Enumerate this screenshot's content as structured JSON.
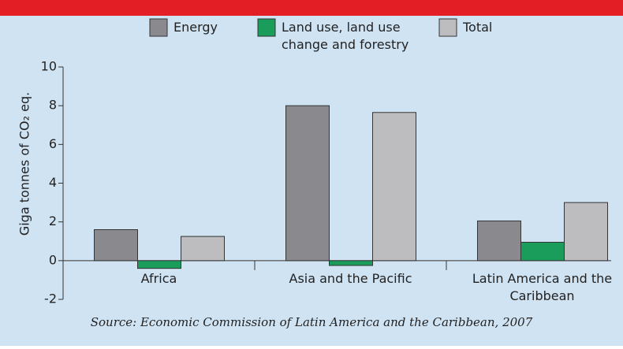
{
  "chart_data": {
    "type": "bar",
    "y_axis_label": "Giga tonnes of CO₂ eq.",
    "source": "Source: Economic Commission of Latin America and the Caribbean, 2007",
    "categories": [
      "Africa",
      "Asia and the Pacific",
      "Latin America and the Caribbean"
    ],
    "series": [
      {
        "name": "Energy",
        "color": "#8a8a8e",
        "values": [
          1.6,
          8.0,
          2.05
        ]
      },
      {
        "name": "Land use, land use change and forestry",
        "color": "#1a9c5b",
        "values": [
          -0.4,
          -0.25,
          0.95
        ]
      },
      {
        "name": "Total",
        "color": "#bdbdbf",
        "values": [
          1.25,
          7.65,
          3.0
        ]
      }
    ],
    "ylim": [
      -2,
      10
    ],
    "yticks": [
      -2,
      0,
      2,
      4,
      6,
      8,
      10
    ],
    "grid": false
  }
}
